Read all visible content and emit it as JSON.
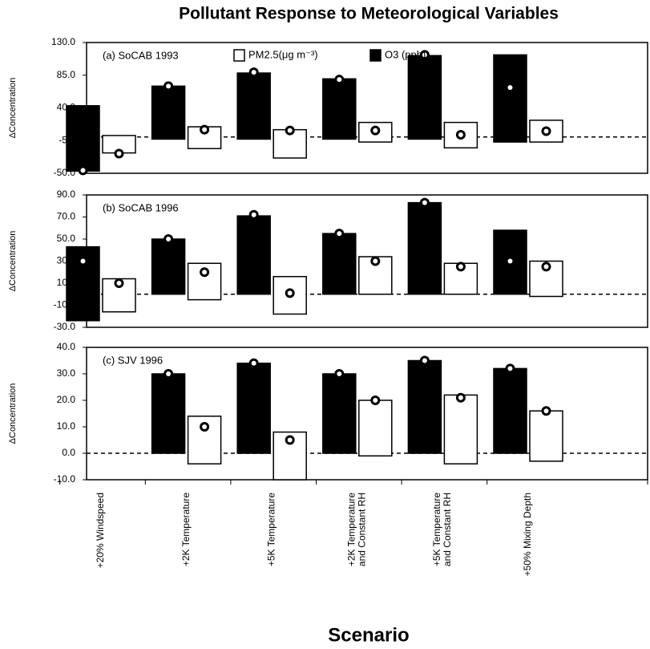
{
  "title": "Pollutant Response to Meteorological Variables",
  "xlabel": "Scenario",
  "categories": [
    "+20% Windspeed",
    "+2K Temperature",
    "+5K Temperature",
    [
      "+2K Temperature",
      "and Constant RH"
    ],
    [
      "+5K Temperature",
      "and Constant RH"
    ],
    "+50% Mixing Depth"
  ],
  "chart_data": [
    {
      "type": "floating-bar",
      "panel_label": "(a) SoCAB 1993",
      "ylabel": "ΔConcentration",
      "ylim": [
        -50,
        130
      ],
      "yticks": [
        {
          "value": -50,
          "label": "-50.0"
        },
        {
          "value": -5,
          "label": "-5.0"
        },
        {
          "value": 40,
          "label": "40.0"
        },
        {
          "value": 85,
          "label": "85.0"
        },
        {
          "value": 130,
          "label": "130.0"
        }
      ],
      "series": [
        {
          "name": "O3 (ppb)",
          "color": "#000000",
          "low": [
            -47,
            -3,
            -3,
            -3,
            -3,
            -7
          ],
          "high": [
            43,
            70,
            88,
            80,
            112,
            113
          ],
          "values": [
            -46,
            70,
            89,
            79,
            113,
            68
          ]
        },
        {
          "name": "PM2.5(μg m⁻³)",
          "color": "#ffffff",
          "low": [
            -22,
            -16,
            -29,
            -7,
            -15,
            -7
          ],
          "high": [
            2,
            14,
            10,
            20,
            20,
            23
          ],
          "values": [
            -23,
            10,
            9,
            9,
            3,
            8
          ]
        }
      ]
    },
    {
      "type": "floating-bar",
      "panel_label": "(b) SoCAB 1996",
      "ylabel": "ΔConcentration",
      "ylim": [
        -30,
        90
      ],
      "yticks": [
        {
          "value": -30,
          "label": "-30.0"
        },
        {
          "value": -10,
          "label": "-10.0"
        },
        {
          "value": 10,
          "label": "10.0"
        },
        {
          "value": 30,
          "label": "30.0"
        },
        {
          "value": 50,
          "label": "50.0"
        },
        {
          "value": 70,
          "label": "70.0"
        },
        {
          "value": 90,
          "label": "90.0"
        }
      ],
      "series": [
        {
          "color": "#000000",
          "low": [
            -24,
            0,
            0,
            0,
            0,
            0
          ],
          "high": [
            43,
            50,
            71,
            55,
            83,
            58
          ],
          "values": [
            30,
            50,
            72,
            55,
            83,
            30
          ]
        },
        {
          "color": "#ffffff",
          "low": [
            -16,
            -5,
            -18,
            0,
            0,
            -2
          ],
          "high": [
            14,
            28,
            16,
            34,
            28,
            30
          ],
          "values": [
            10,
            20,
            1,
            30,
            25,
            25
          ]
        }
      ]
    },
    {
      "type": "floating-bar",
      "panel_label": "(c) SJV 1996",
      "ylabel": "ΔConcentration",
      "ylim": [
        -10,
        40
      ],
      "yticks": [
        {
          "value": -10,
          "label": "-10.0"
        },
        {
          "value": 0,
          "label": "0.0"
        },
        {
          "value": 10,
          "label": "10.0"
        },
        {
          "value": 20,
          "label": "20.0"
        },
        {
          "value": 30,
          "label": "30.0"
        },
        {
          "value": 40,
          "label": "40.0"
        }
      ],
      "series": [
        {
          "color": "#000000",
          "low": [
            null,
            0,
            0,
            0,
            0,
            0
          ],
          "high": [
            null,
            30,
            34,
            30,
            35,
            32
          ],
          "values": [
            null,
            30,
            34,
            30,
            35,
            32
          ]
        },
        {
          "color": "#ffffff",
          "low": [
            null,
            -4,
            -10,
            -1,
            -4,
            -3
          ],
          "high": [
            null,
            14,
            8,
            20,
            22,
            16
          ],
          "values": [
            null,
            10,
            5,
            20,
            21,
            16
          ]
        }
      ]
    }
  ]
}
